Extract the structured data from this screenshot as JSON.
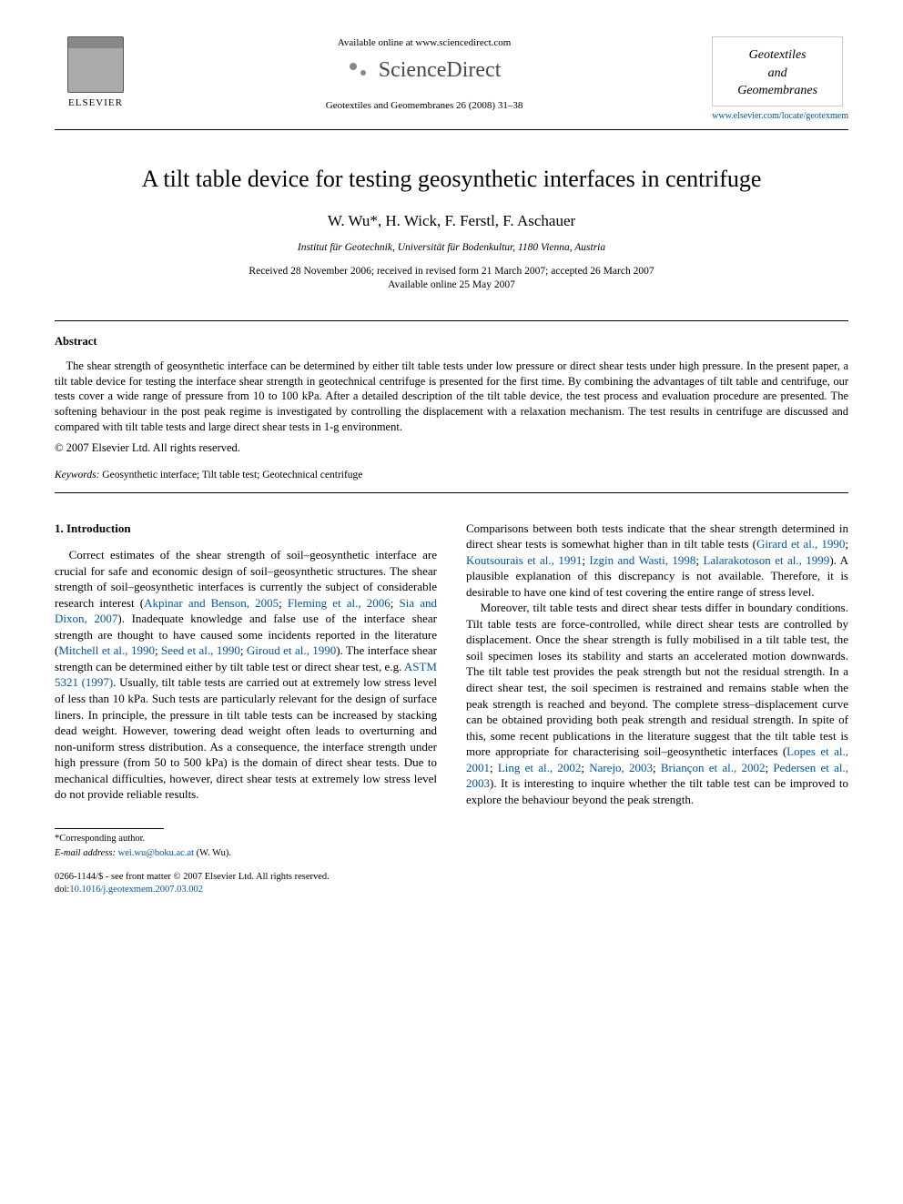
{
  "header": {
    "available_online": "Available online at www.sciencedirect.com",
    "sciencedirect": "ScienceDirect",
    "journal_citation": "Geotextiles and Geomembranes 26 (2008) 31–38",
    "elsevier_label": "ELSEVIER",
    "journal_box_line1": "Geotextiles",
    "journal_box_line2": "and",
    "journal_box_line3": "Geomembranes",
    "journal_url": "www.elsevier.com/locate/geotexmem"
  },
  "article": {
    "title": "A tilt table device for testing geosynthetic interfaces in centrifuge",
    "authors": "W. Wu*, H. Wick, F. Ferstl, F. Aschauer",
    "affiliation": "Institut für Geotechnik, Universität für Bodenkultur, 1180 Vienna, Austria",
    "dates_line1": "Received 28 November 2006; received in revised form 21 March 2007; accepted 26 March 2007",
    "dates_line2": "Available online 25 May 2007"
  },
  "abstract": {
    "heading": "Abstract",
    "body": "The shear strength of geosynthetic interface can be determined by either tilt table tests under low pressure or direct shear tests under high pressure. In the present paper, a tilt table device for testing the interface shear strength in geotechnical centrifuge is presented for the first time. By combining the advantages of tilt table and centrifuge, our tests cover a wide range of pressure from 10 to 100 kPa. After a detailed description of the tilt table device, the test process and evaluation procedure are presented. The softening behaviour in the post peak regime is investigated by controlling the displacement with a relaxation mechanism. The test results in centrifuge are discussed and compared with tilt table tests and large direct shear tests in 1-g environment.",
    "copyright": "© 2007 Elsevier Ltd. All rights reserved.",
    "keywords_label": "Keywords:",
    "keywords": " Geosynthetic interface; Tilt table test; Geotechnical centrifuge"
  },
  "section1": {
    "heading": "1. Introduction",
    "left_p1_a": "Correct estimates of the shear strength of soil–geosynthetic interface are crucial for safe and economic design of soil–geosynthetic structures. The shear strength of soil–geosynthetic interfaces is currently the subject of considerable research interest (",
    "left_p1_link1": "Akpinar and Benson, 2005",
    "left_sep1": "; ",
    "left_p1_link2": "Fleming et al., 2006",
    "left_sep2": "; ",
    "left_p1_link3": "Sia and Dixon, 2007",
    "left_p1_b": "). Inadequate knowledge and false use of the interface shear strength are thought to have caused some incidents reported in the literature (",
    "left_p1_link4": "Mitchell et al., 1990",
    "left_sep3": "; ",
    "left_p1_link5": "Seed et al., 1990",
    "left_sep4": "; ",
    "left_p1_link6": "Giroud et al., 1990",
    "left_p1_c": "). The interface shear strength can be determined either by tilt table test or direct shear test, e.g. ",
    "left_p1_link7": "ASTM 5321 (1997)",
    "left_p1_d": ". Usually, tilt table tests are carried out at extremely low stress level of less than 10 kPa. Such tests are particularly relevant for the design of surface liners. In principle, the pressure in tilt table tests can be increased by stacking dead weight. However, towering dead weight often leads to overturning and non-uniform stress distribution. As a consequence, the interface strength under high pressure (from 50 to 500 kPa) is the domain of direct shear tests. Due to mechanical difficulties, however, direct shear tests at extremely low stress level do not provide reliable results.",
    "right_p1_a": "Comparisons between both tests indicate that the shear strength determined in direct shear tests is somewhat higher than in tilt table tests (",
    "right_p1_link1": "Girard et al., 1990",
    "right_sep1": "; ",
    "right_p1_link2": "Koutsourais et al., 1991",
    "right_sep2": "; ",
    "right_p1_link3": "Izgin and Wasti, 1998",
    "right_sep3": "; ",
    "right_p1_link4": "Lalarakotoson et al., 1999",
    "right_p1_b": "). A plausible explanation of this discrepancy is not available. Therefore, it is desirable to have one kind of test covering the entire range of stress level.",
    "right_p2_a": "Moreover, tilt table tests and direct shear tests differ in boundary conditions. Tilt table tests are force-controlled, while direct shear tests are controlled by displacement. Once the shear strength is fully mobilised in a tilt table test, the soil specimen loses its stability and starts an accelerated motion downwards. The tilt table test provides the peak strength but not the residual strength. In a direct shear test, the soil specimen is restrained and remains stable when the peak strength is reached and beyond. The complete stress–displacement curve can be obtained providing both peak strength and residual strength. In spite of this, some recent publications in the literature suggest that the tilt table test is more appropriate for characterising soil–geosynthetic interfaces (",
    "right_p2_link1": "Lopes et al., 2001",
    "right_sep4": "; ",
    "right_p2_link2": "Ling et al., 2002",
    "right_sep5": "; ",
    "right_p2_link3": "Narejo, 2003",
    "right_sep6": "; ",
    "right_p2_link4": "Briançon et al., 2002",
    "right_sep7": "; ",
    "right_p2_link5": "Pedersen et al., 2003",
    "right_p2_b": "). It is interesting to inquire whether the tilt table test can be improved to explore the behaviour beyond the peak strength."
  },
  "footer": {
    "corresponding": "*Corresponding author.",
    "email_label": "E-mail address: ",
    "email": "wei.wu@boku.ac.at",
    "email_suffix": " (W. Wu).",
    "front_matter": "0266-1144/$ - see front matter © 2007 Elsevier Ltd. All rights reserved.",
    "doi_label": "doi:",
    "doi": "10.1016/j.geotexmem.2007.03.002"
  },
  "colors": {
    "link": "#0454a4",
    "text": "#000000",
    "bg": "#ffffff"
  }
}
